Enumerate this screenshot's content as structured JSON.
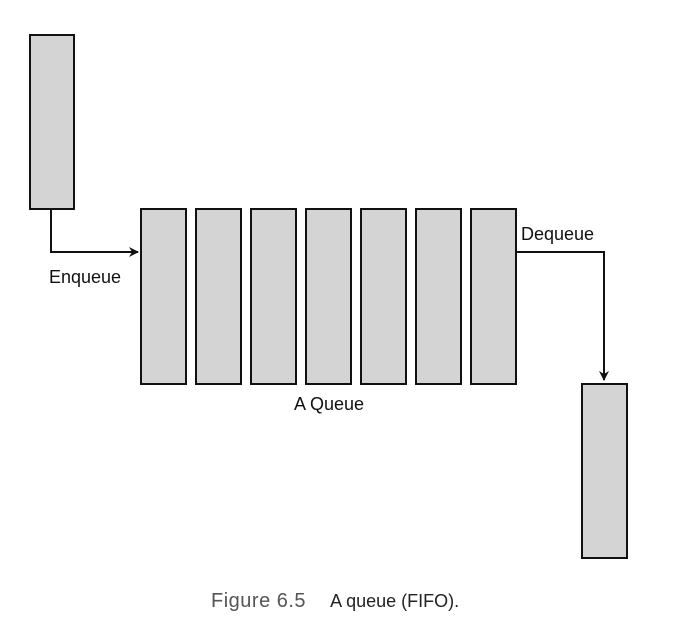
{
  "diagram": {
    "enqueue_label": "Enqueue",
    "dequeue_label": "Dequeue",
    "queue_label": "A Queue",
    "queue_slot_count": 7,
    "box_fill": "#d4d4d4",
    "stroke_color": "#111111"
  },
  "caption": {
    "figure_number": "Figure 6.5",
    "title": "A queue (FIFO)."
  }
}
